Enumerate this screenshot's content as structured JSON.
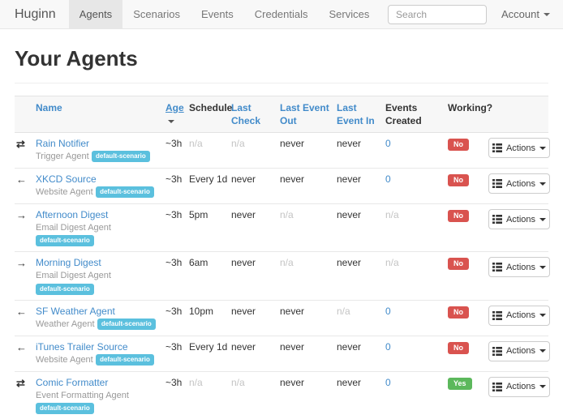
{
  "navbar": {
    "brand": "Huginn",
    "items": [
      {
        "label": "Agents",
        "active": true
      },
      {
        "label": "Scenarios",
        "active": false
      },
      {
        "label": "Events",
        "active": false
      },
      {
        "label": "Credentials",
        "active": false
      },
      {
        "label": "Services",
        "active": false
      }
    ],
    "search_placeholder": "Search",
    "account_label": "Account"
  },
  "page": {
    "title": "Your Agents"
  },
  "colors": {
    "link_blue": "#428bca",
    "badge_info": "#5bc0de",
    "badge_danger": "#d9534f",
    "badge_success": "#5cb85c",
    "muted": "#c4c4c4",
    "navbar_bg": "#f8f8f8",
    "navbar_active_bg": "#e7e7e7"
  },
  "icon_glyphs": {
    "transfer-icon": "⇄",
    "arrow-left-icon": "←",
    "arrow-right-icon": "→"
  },
  "table": {
    "headers": [
      {
        "label": "",
        "sortable": false,
        "sorted": false
      },
      {
        "label": "Name",
        "sortable": true,
        "sorted": false
      },
      {
        "label": "Age",
        "sortable": true,
        "sorted": true
      },
      {
        "label": "Schedule",
        "sortable": false,
        "sorted": false
      },
      {
        "label": "Last Check",
        "sortable": true,
        "sorted": false
      },
      {
        "label": "Last Event Out",
        "sortable": true,
        "sorted": false
      },
      {
        "label": "Last Event In",
        "sortable": true,
        "sorted": false
      },
      {
        "label": "Events Created",
        "sortable": false,
        "sorted": false
      },
      {
        "label": "Working?",
        "sortable": false,
        "sorted": false
      },
      {
        "label": "",
        "sortable": false,
        "sorted": false
      }
    ],
    "actions_label": "Actions",
    "rows": [
      {
        "icon": "transfer-icon",
        "name": "Rain Notifier",
        "type": "Trigger Agent",
        "scenario": "default-scenario",
        "age": "~3h",
        "schedule": "n/a",
        "last_check": "n/a",
        "last_event_out": "never",
        "last_event_in": "never",
        "events_created": "0",
        "working": "No"
      },
      {
        "icon": "arrow-left-icon",
        "name": "XKCD Source",
        "type": "Website Agent",
        "scenario": "default-scenario",
        "age": "~3h",
        "schedule": "Every 1d",
        "last_check": "never",
        "last_event_out": "never",
        "last_event_in": "never",
        "events_created": "0",
        "working": "No"
      },
      {
        "icon": "arrow-right-icon",
        "name": "Afternoon Digest",
        "type": "Email Digest Agent",
        "scenario": "default-scenario",
        "age": "~3h",
        "schedule": "5pm",
        "last_check": "never",
        "last_event_out": "n/a",
        "last_event_in": "never",
        "events_created": "n/a",
        "working": "No"
      },
      {
        "icon": "arrow-right-icon",
        "name": "Morning Digest",
        "type": "Email Digest Agent",
        "scenario": "default-scenario",
        "age": "~3h",
        "schedule": "6am",
        "last_check": "never",
        "last_event_out": "n/a",
        "last_event_in": "never",
        "events_created": "n/a",
        "working": "No"
      },
      {
        "icon": "arrow-left-icon",
        "name": "SF Weather Agent",
        "type": "Weather Agent",
        "scenario": "default-scenario",
        "age": "~3h",
        "schedule": "10pm",
        "last_check": "never",
        "last_event_out": "never",
        "last_event_in": "n/a",
        "events_created": "0",
        "working": "No"
      },
      {
        "icon": "arrow-left-icon",
        "name": "iTunes Trailer Source",
        "type": "Website Agent",
        "scenario": "default-scenario",
        "age": "~3h",
        "schedule": "Every 1d",
        "last_check": "never",
        "last_event_out": "never",
        "last_event_in": "never",
        "events_created": "0",
        "working": "No"
      },
      {
        "icon": "transfer-icon",
        "name": "Comic Formatter",
        "type": "Event Formatting Agent",
        "scenario": "default-scenario",
        "age": "~3h",
        "schedule": "n/a",
        "last_check": "n/a",
        "last_event_out": "never",
        "last_event_in": "never",
        "events_created": "0",
        "working": "Yes"
      }
    ]
  }
}
